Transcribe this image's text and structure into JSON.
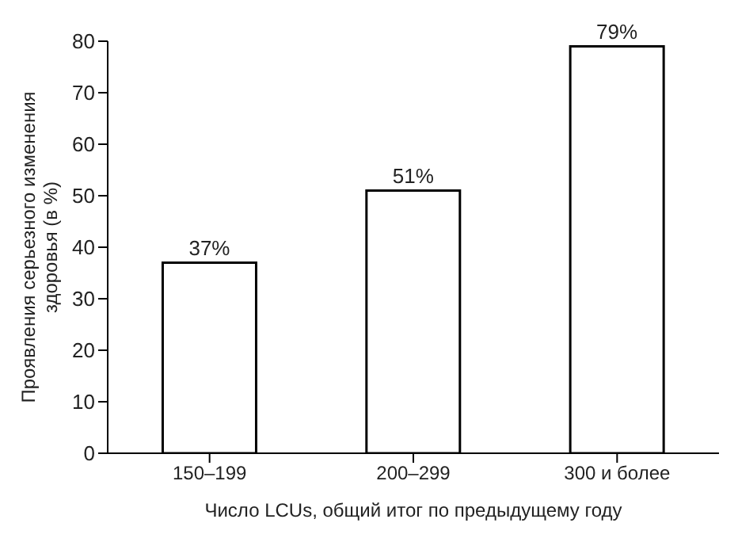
{
  "chart_data": {
    "type": "bar",
    "categories": [
      "150–199",
      "200–299",
      "300 и более"
    ],
    "values": [
      37,
      51,
      79
    ],
    "value_labels": [
      "37%",
      "51%",
      "79%"
    ],
    "color": "#ffffff",
    "xlabel": "Число LCUs, общий итог по предыдущему году",
    "ylabel": "Проявления серьезного изменения здоровья (в %)",
    "ylim": [
      0,
      80
    ],
    "yticks": [
      0,
      10,
      20,
      30,
      40,
      50,
      60,
      70,
      80
    ],
    "grid": false
  }
}
